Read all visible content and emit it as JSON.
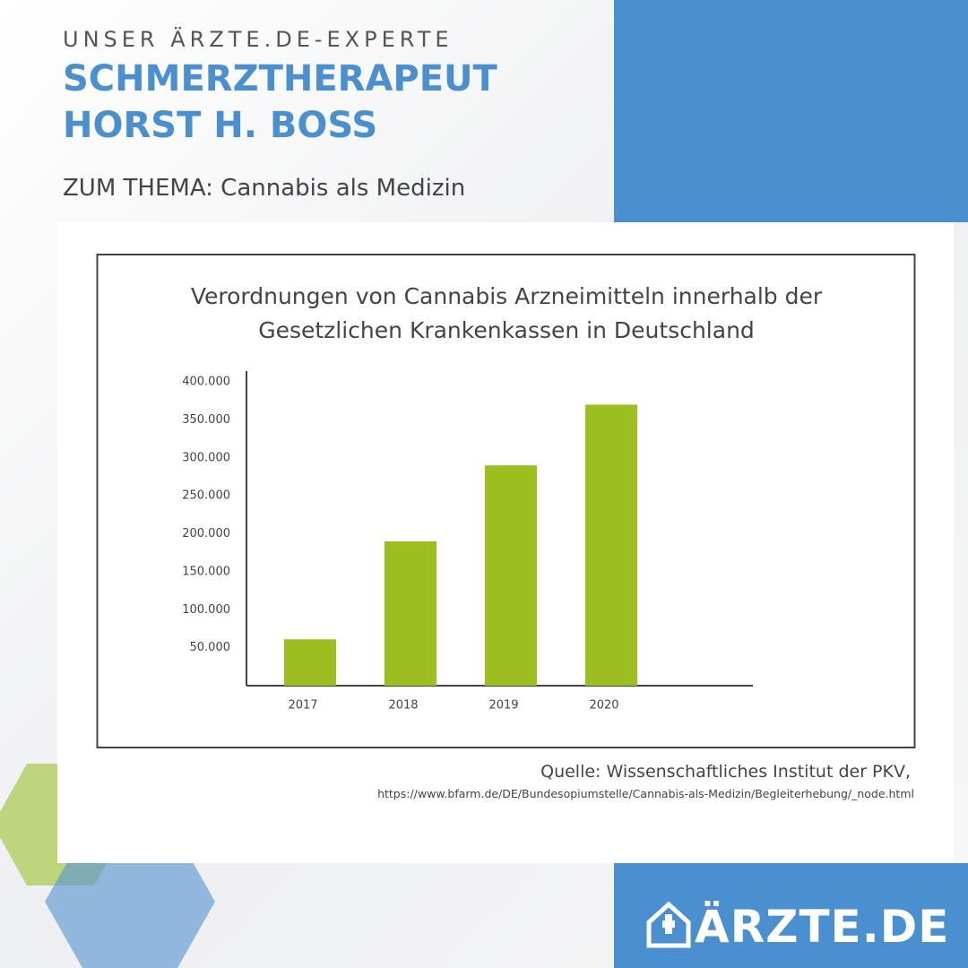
{
  "header": {
    "kicker": "UNSER ÄRZTE.DE-EXPERTE",
    "title_lines": [
      "SCHMERZTHERAPEUT",
      "HORST H. BOSS"
    ],
    "topic": "ZUM THEMA: Cannabis als Medizin"
  },
  "chart_data": {
    "type": "bar",
    "title": "Verordnungen von Cannabis Arzneimitteln innerhalb der Gesetzlichen Krankenkassen in Deutschland",
    "categories": [
      "2017",
      "2018",
      "2019",
      "2020"
    ],
    "values": [
      61000,
      190000,
      290000,
      370000
    ],
    "color": "#9bbf1e",
    "ylim": [
      0,
      400000
    ],
    "yticks": [
      {
        "value": 50000,
        "label": "50.000"
      },
      {
        "value": 100000,
        "label": "100.000"
      },
      {
        "value": 150000,
        "label": "150.000"
      },
      {
        "value": 200000,
        "label": "200.000"
      },
      {
        "value": 250000,
        "label": "250.000"
      },
      {
        "value": 300000,
        "label": "300.000"
      },
      {
        "value": 350000,
        "label": "350.000"
      },
      {
        "value": 400000,
        "label": "400.000"
      }
    ],
    "grid": false
  },
  "source": {
    "label": "Quelle: Wissenschaftliches Institut der PKV,",
    "url": "https://www.bfarm.de/DE/Bundesopiumstelle/Cannabis-als-Medizin/Begleiterhebung/_node.html"
  },
  "logo": {
    "text": "ÄRZTE.DE"
  }
}
